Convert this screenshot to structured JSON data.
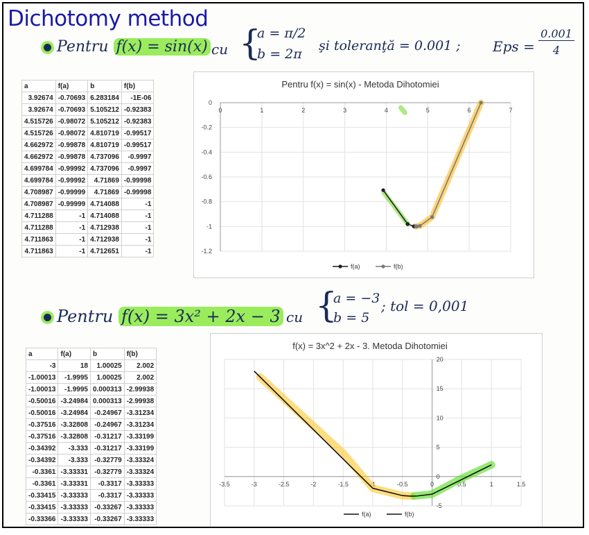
{
  "title": "Dichotomy method",
  "section1": {
    "bullet_prefix": "Pentru",
    "function": "f(x) = sin(x)",
    "cu": "cu",
    "param_a": "a = π/2",
    "param_b": "b = 2π",
    "tolerance": "şi toleranţă = 0.001 ;",
    "eps_label": "Eps =",
    "eps_num": "0.001",
    "eps_den": "4",
    "table": {
      "headers": [
        "a",
        "f(a)",
        "b",
        "f(b)"
      ],
      "rows": [
        [
          "3.92674",
          "-0.70693",
          "6.283184",
          "-1E-06"
        ],
        [
          "3.92674",
          "-0.70693",
          "5.105212",
          "-0.92383"
        ],
        [
          "4.515726",
          "-0.98072",
          "5.105212",
          "-0.92383"
        ],
        [
          "4.515726",
          "-0.98072",
          "4.810719",
          "-0.99517"
        ],
        [
          "4.662972",
          "-0.99878",
          "4.810719",
          "-0.99517"
        ],
        [
          "4.662972",
          "-0.99878",
          "4.737096",
          "-0.9997"
        ],
        [
          "4.699784",
          "-0.99992",
          "4.737096",
          "-0.9997"
        ],
        [
          "4.699784",
          "-0.99992",
          "4.71869",
          "-0.99998"
        ],
        [
          "4.708987",
          "-0.99999",
          "4.71869",
          "-0.99998"
        ],
        [
          "4.708987",
          "-0.99999",
          "4.714088",
          "-1"
        ],
        [
          "4.711288",
          "-1",
          "4.714088",
          "-1"
        ],
        [
          "4.711288",
          "-1",
          "4.712938",
          "-1"
        ],
        [
          "4.711863",
          "-1",
          "4.712938",
          "-1"
        ],
        [
          "4.711863",
          "-1",
          "4.712651",
          "-1"
        ]
      ]
    }
  },
  "section2": {
    "bullet_prefix": "Pentru",
    "function": "f(x) = 3x² + 2x − 3",
    "cu": "cu",
    "param_a": "a = −3",
    "param_b": "b = 5",
    "tolerance": "; tol = 0,001",
    "table": {
      "headers": [
        "a",
        "f(a)",
        "b",
        "f(b)"
      ],
      "rows": [
        [
          "-3",
          "18",
          "1.00025",
          "2.002"
        ],
        [
          "-1.00013",
          "-1.9995",
          "1.00025",
          "2.002"
        ],
        [
          "-1.00013",
          "-1.9995",
          "0.000313",
          "-2.99938"
        ],
        [
          "-0.50016",
          "-3.24984",
          "0.000313",
          "-2.99938"
        ],
        [
          "-0.50016",
          "-3.24984",
          "-0.24967",
          "-3.31234"
        ],
        [
          "-0.37516",
          "-3.32808",
          "-0.24967",
          "-3.31234"
        ],
        [
          "-0.37516",
          "-3.32808",
          "-0.31217",
          "-3.33199"
        ],
        [
          "-0.34392",
          "-3.333",
          "-0.31217",
          "-3.33199"
        ],
        [
          "-0.34392",
          "-3.333",
          "-0.32779",
          "-3.33324"
        ],
        [
          "-0.3361",
          "-3.33331",
          "-0.32779",
          "-3.33324"
        ],
        [
          "-0.3361",
          "-3.33331",
          "-0.3317",
          "-3.33333"
        ],
        [
          "-0.33415",
          "-3.33333",
          "-0.3317",
          "-3.33333"
        ],
        [
          "-0.33415",
          "-3.33333",
          "-0.33267",
          "-3.33333"
        ],
        [
          "-0.33366",
          "-3.33333",
          "-0.33267",
          "-3.33333"
        ]
      ]
    }
  },
  "chart_data": [
    {
      "type": "line",
      "title": "Pentru f(x) = sin(x) - Metoda Dihotomiei",
      "xlim": [
        0,
        7
      ],
      "ylim": [
        -1.2,
        0
      ],
      "x_ticks": [
        0,
        1,
        2,
        3,
        4,
        5,
        6,
        7
      ],
      "y_ticks": [
        0,
        -0.2,
        -0.4,
        -0.6,
        -0.8,
        -1,
        -1.2
      ],
      "x_tick_labels": [
        "0",
        "1",
        "2",
        "3",
        "4",
        "5",
        "6",
        "7"
      ],
      "y_tick_labels": [
        "0",
        "-0.2",
        "-0.4",
        "-0.6",
        "-0.8",
        "-1",
        "-1.2"
      ],
      "legend_position": "bottom",
      "series": [
        {
          "name": "f(a)",
          "color": "#1f1f1f",
          "x": [
            3.92674,
            3.92674,
            4.515726,
            4.515726,
            4.662972,
            4.662972,
            4.699784,
            4.699784,
            4.708987,
            4.708987,
            4.711288,
            4.711288,
            4.711863,
            4.711863
          ],
          "y": [
            -0.70693,
            -0.70693,
            -0.98072,
            -0.98072,
            -0.99878,
            -0.99878,
            -0.99992,
            -0.99992,
            -0.99999,
            -0.99999,
            -1,
            -1,
            -1,
            -1
          ]
        },
        {
          "name": "f(b)",
          "color": "#7a7a7a",
          "x": [
            6.283184,
            5.105212,
            5.105212,
            4.810719,
            4.810719,
            4.737096,
            4.737096,
            4.71869,
            4.71869,
            4.714088,
            4.714088,
            4.712938,
            4.712938,
            4.712651
          ],
          "y": [
            -1e-06,
            -0.92383,
            -0.92383,
            -0.99517,
            -0.99517,
            -0.9997,
            -0.9997,
            -0.99998,
            -0.99998,
            -1,
            -1,
            -1,
            -1,
            -1
          ]
        }
      ]
    },
    {
      "type": "line",
      "title": "f(x) = 3x^2 + 2x - 3. Metoda Dihotomiei",
      "xlim": [
        -3.5,
        1.5
      ],
      "ylim": [
        -5,
        20
      ],
      "x_ticks": [
        -3.5,
        -3,
        -2.5,
        -2,
        -1.5,
        -1,
        -0.5,
        0,
        0.5,
        1,
        1.5
      ],
      "y_ticks": [
        20,
        15,
        10,
        5,
        0,
        -5
      ],
      "x_tick_labels": [
        "-3.5",
        "-3",
        "-2.5",
        "-2",
        "-1.5",
        "-1",
        "-0.5",
        "0",
        "0.5",
        "1",
        "1.5"
      ],
      "y_tick_labels": [
        "20",
        "15",
        "10",
        "5",
        "0",
        "-5"
      ],
      "legend_position": "bottom",
      "series": [
        {
          "name": "f(a)",
          "color": "#111111",
          "x": [
            -3,
            -1.00013,
            -1.00013,
            -0.50016,
            -0.50016,
            -0.37516,
            -0.37516,
            -0.34392,
            -0.34392,
            -0.3361,
            -0.3361,
            -0.33415,
            -0.33415,
            -0.33366
          ],
          "y": [
            18,
            -1.9995,
            -1.9995,
            -3.24984,
            -3.24984,
            -3.32808,
            -3.32808,
            -3.333,
            -3.333,
            -3.33331,
            -3.33331,
            -3.33333,
            -3.33333,
            -3.33333
          ]
        },
        {
          "name": "f(b)",
          "color": "#111111",
          "x": [
            1.00025,
            1.00025,
            0.000313,
            0.000313,
            -0.24967,
            -0.24967,
            -0.31217,
            -0.31217,
            -0.32779,
            -0.32779,
            -0.3317,
            -0.3317,
            -0.33267,
            -0.33267
          ],
          "y": [
            2.002,
            2.002,
            -2.99938,
            -2.99938,
            -3.31234,
            -3.31234,
            -3.33199,
            -3.33199,
            -3.33324,
            -3.33324,
            -3.33333,
            -3.33333,
            -3.33333,
            -3.33333
          ]
        }
      ]
    }
  ]
}
